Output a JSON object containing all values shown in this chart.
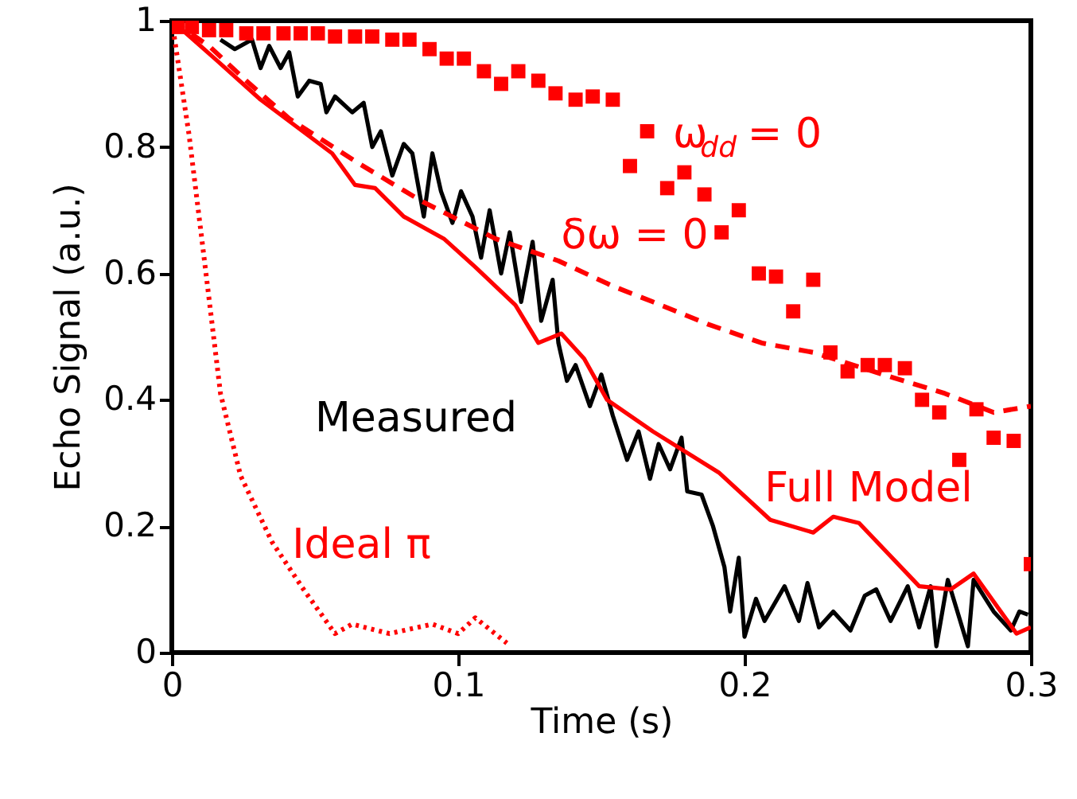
{
  "chart_data": {
    "type": "line",
    "xlabel": "Time (s)",
    "ylabel": "Echo Signal (a.u.)",
    "xlim": [
      0,
      0.3
    ],
    "xticks": [
      0,
      0.1,
      0.2,
      0.3
    ],
    "ylim": [
      0,
      1
    ],
    "yticks": [
      0,
      0.2,
      0.4,
      0.6,
      0.8,
      1
    ],
    "grid": false,
    "legend": false,
    "series": [
      {
        "name": "Measured",
        "type": "line",
        "color": "#000000",
        "line_style": "solid",
        "x": [
          0.017,
          0.022,
          0.028,
          0.031,
          0.034,
          0.038,
          0.041,
          0.044,
          0.048,
          0.052,
          0.054,
          0.057,
          0.063,
          0.067,
          0.07,
          0.073,
          0.077,
          0.081,
          0.084,
          0.088,
          0.091,
          0.094,
          0.098,
          0.101,
          0.105,
          0.108,
          0.111,
          0.115,
          0.118,
          0.122,
          0.126,
          0.129,
          0.133,
          0.135,
          0.138,
          0.141,
          0.146,
          0.15,
          0.154,
          0.159,
          0.163,
          0.167,
          0.17,
          0.174,
          0.178,
          0.18,
          0.185,
          0.189,
          0.193,
          0.195,
          0.198,
          0.2,
          0.204,
          0.207,
          0.214,
          0.219,
          0.222,
          0.226,
          0.231,
          0.237,
          0.242,
          0.246,
          0.251,
          0.257,
          0.261,
          0.265,
          0.267,
          0.271,
          0.278,
          0.28,
          0.287,
          0.293,
          0.296,
          0.299
        ],
        "values": [
          0.97,
          0.955,
          0.97,
          0.925,
          0.96,
          0.925,
          0.95,
          0.88,
          0.905,
          0.9,
          0.855,
          0.88,
          0.855,
          0.87,
          0.8,
          0.825,
          0.755,
          0.805,
          0.79,
          0.69,
          0.79,
          0.73,
          0.68,
          0.73,
          0.69,
          0.625,
          0.7,
          0.6,
          0.665,
          0.555,
          0.65,
          0.525,
          0.59,
          0.49,
          0.43,
          0.455,
          0.39,
          0.44,
          0.375,
          0.305,
          0.35,
          0.275,
          0.33,
          0.29,
          0.34,
          0.255,
          0.25,
          0.2,
          0.135,
          0.065,
          0.15,
          0.025,
          0.085,
          0.05,
          0.105,
          0.05,
          0.11,
          0.04,
          0.065,
          0.035,
          0.09,
          0.1,
          0.05,
          0.105,
          0.04,
          0.105,
          0.01,
          0.115,
          0.01,
          0.115,
          0.065,
          0.035,
          0.065,
          0.06
        ]
      },
      {
        "name": "Full Model",
        "type": "line",
        "color": "#ff0000",
        "line_style": "solid",
        "x": [
          0,
          0.015,
          0.031,
          0.056,
          0.064,
          0.071,
          0.081,
          0.095,
          0.106,
          0.12,
          0.128,
          0.136,
          0.144,
          0.152,
          0.168,
          0.191,
          0.209,
          0.224,
          0.231,
          0.24,
          0.261,
          0.272,
          0.28,
          0.295,
          0.3
        ],
        "values": [
          1,
          0.94,
          0.875,
          0.79,
          0.74,
          0.735,
          0.69,
          0.655,
          0.61,
          0.55,
          0.49,
          0.505,
          0.465,
          0.4,
          0.35,
          0.285,
          0.21,
          0.19,
          0.215,
          0.205,
          0.105,
          0.1,
          0.125,
          0.03,
          0.04
        ]
      },
      {
        "name": "δω = 0",
        "type": "line",
        "color": "#ff0000",
        "line_style": "dashed",
        "x": [
          0,
          0.013,
          0.026,
          0.041,
          0.065,
          0.087,
          0.113,
          0.135,
          0.154,
          0.168,
          0.187,
          0.206,
          0.224,
          0.252,
          0.27,
          0.287,
          0.3
        ],
        "values": [
          1,
          0.96,
          0.905,
          0.845,
          0.775,
          0.715,
          0.655,
          0.62,
          0.58,
          0.555,
          0.52,
          0.49,
          0.475,
          0.435,
          0.41,
          0.38,
          0.39
        ]
      },
      {
        "name": "ω$_{dd}$ = 0",
        "type": "scatter",
        "marker": "square",
        "color": "#ff0000",
        "x": [
          0.002,
          0.007,
          0.013,
          0.019,
          0.026,
          0.032,
          0.039,
          0.045,
          0.051,
          0.057,
          0.064,
          0.07,
          0.077,
          0.083,
          0.09,
          0.096,
          0.102,
          0.109,
          0.115,
          0.121,
          0.128,
          0.134,
          0.141,
          0.147,
          0.154,
          0.16,
          0.166,
          0.173,
          0.179,
          0.186,
          0.192,
          0.198,
          0.205,
          0.211,
          0.217,
          0.224,
          0.23,
          0.236,
          0.243,
          0.249,
          0.256,
          0.262,
          0.268,
          0.275,
          0.281,
          0.287,
          0.294,
          0.3
        ],
        "values": [
          0.99,
          0.99,
          0.985,
          0.985,
          0.98,
          0.98,
          0.98,
          0.98,
          0.98,
          0.975,
          0.975,
          0.975,
          0.97,
          0.97,
          0.955,
          0.94,
          0.94,
          0.92,
          0.9,
          0.92,
          0.905,
          0.885,
          0.875,
          0.88,
          0.875,
          0.77,
          0.825,
          0.735,
          0.76,
          0.725,
          0.665,
          0.7,
          0.6,
          0.595,
          0.54,
          0.59,
          0.475,
          0.445,
          0.455,
          0.455,
          0.45,
          0.4,
          0.38,
          0.305,
          0.385,
          0.34,
          0.335,
          0.14
        ]
      },
      {
        "name": "Ideal π",
        "type": "line",
        "color": "#ff0000",
        "line_style": "dotted",
        "x": [
          0,
          0.006,
          0.011,
          0.017,
          0.024,
          0.035,
          0.046,
          0.057,
          0.063,
          0.076,
          0.091,
          0.1,
          0.106,
          0.117
        ],
        "values": [
          1,
          0.82,
          0.635,
          0.41,
          0.28,
          0.175,
          0.1,
          0.03,
          0.045,
          0.03,
          0.045,
          0.03,
          0.055,
          0.015
        ]
      }
    ]
  }
}
